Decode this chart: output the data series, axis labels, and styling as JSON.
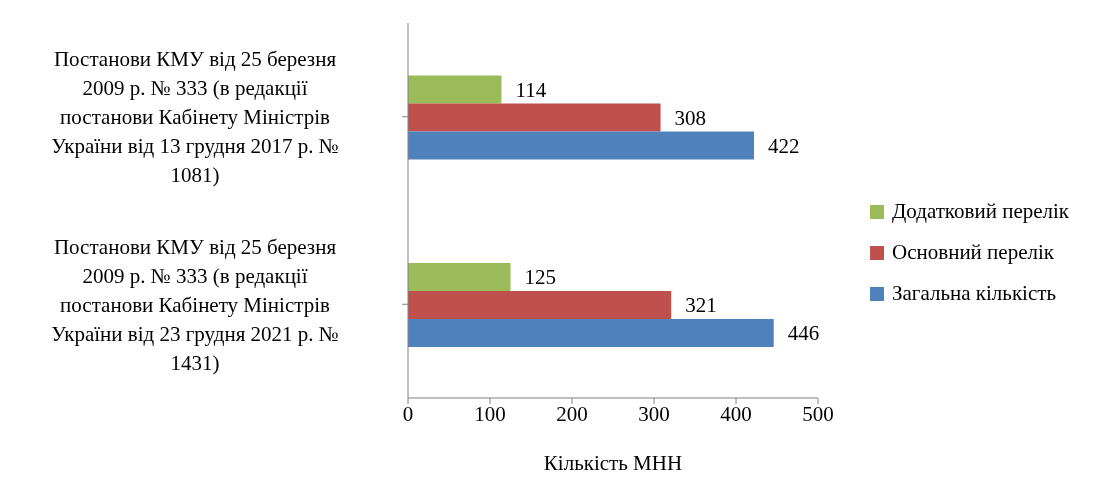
{
  "chart_data": {
    "type": "bar",
    "orientation": "horizontal",
    "categories": [
      "Постанови КМУ від 25 березня 2009 р. № 333 (в редакції постанови Кабінету Міністрів України від 13 грудня 2017 р. № 1081)",
      "Постанови КМУ від 25 березня 2009 р. № 333 (в редакції постанови Кабінету Міністрів України від 23 грудня 2021 р. № 1431)"
    ],
    "series": [
      {
        "name": "Додатковий перелік",
        "color": "#9bbb59",
        "values": [
          114,
          125
        ]
      },
      {
        "name": "Основний перелік",
        "color": "#c0504d",
        "values": [
          308,
          321
        ]
      },
      {
        "name": "Загальна кількість",
        "color": "#4f81bd",
        "values": [
          422,
          446
        ]
      }
    ],
    "xlim": [
      0,
      500
    ],
    "xticks": [
      0,
      100,
      200,
      300,
      400,
      500
    ],
    "xlabel": "Кількість МНН",
    "data_labels": true,
    "grid": false,
    "legend": "right"
  }
}
